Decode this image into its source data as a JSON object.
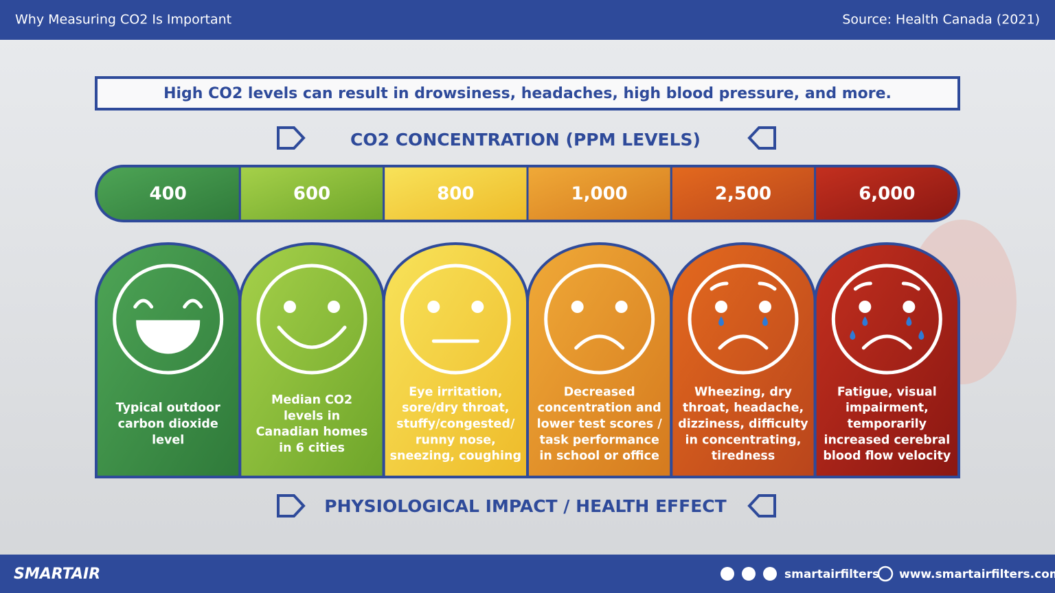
{
  "header": {
    "title": "Why Measuring CO2 Is Important",
    "source": "Source: Health Canada (2021)"
  },
  "banner": "High CO2 levels can result in drowsiness, headaches, high blood pressure, and more.",
  "concentration_title": "CO2 CONCENTRATION (PPM LEVELS)",
  "impact_title": "PHYSIOLOGICAL IMPACT / HEALTH EFFECT",
  "levels": [
    {
      "ppm": "400",
      "effect": [
        "Typical outdoor",
        "carbon dioxide",
        "level"
      ]
    },
    {
      "ppm": "600",
      "effect": [
        "Median CO2",
        "levels in",
        "Canadian homes",
        "in 6 cities"
      ]
    },
    {
      "ppm": "800",
      "effect": [
        "Eye irritation,",
        "sore/dry throat,",
        "stuffy/congested/",
        "runny nose,",
        "sneezing, coughing"
      ]
    },
    {
      "ppm": "1,000",
      "effect": [
        "Decreased",
        "concentration and",
        "lower test scores /",
        "task performance",
        "in school or office"
      ]
    },
    {
      "ppm": "2,500",
      "effect": [
        "Wheezing, dry",
        "throat, headache,",
        "dizziness, difficulty",
        "in concentrating,",
        "tiredness"
      ]
    },
    {
      "ppm": "6,000",
      "effect": [
        "Fatigue, visual",
        "impairment,",
        "temporarily",
        "increased cerebral",
        "blood flow velocity"
      ]
    }
  ],
  "footer": {
    "logo": "SMARTAIR",
    "handle": "smartairfilters",
    "website": "www.smartairfilters.com"
  }
}
